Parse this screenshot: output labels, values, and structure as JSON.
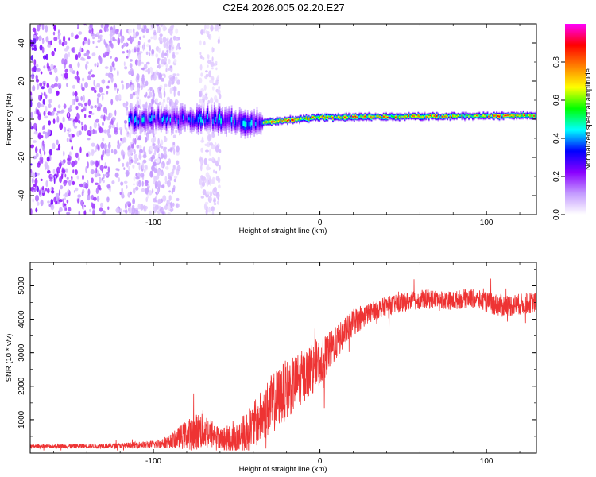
{
  "figure": {
    "title": "C2E4.2026.005.02.20.E27"
  },
  "chart_data": [
    {
      "type": "heatmap",
      "xlabel": "Height of straight line (km)",
      "ylabel": "Frequency (Hz)",
      "xlim": [
        -174,
        130
      ],
      "ylim": [
        -50,
        50
      ],
      "xticks": [
        -100,
        0,
        100
      ],
      "yticks": [
        -40,
        -20,
        0,
        20,
        40
      ],
      "colorbar": {
        "label": "Normalized spectral amplitude",
        "range": [
          0,
          1
        ],
        "ticks": [
          0.0,
          0.2,
          0.4,
          0.6,
          0.8
        ],
        "colormap": [
          "#ffffff",
          "#c49bff",
          "#8a00ff",
          "#0000ff",
          "#00ffff",
          "#00ff00",
          "#ffff00",
          "#ff8000",
          "#ff0000",
          "#ff00ff"
        ]
      },
      "description_points": [
        {
          "x": -170,
          "f_center": 0,
          "f_halfwidth": 50,
          "amplitude": 0.1
        },
        {
          "x": -100,
          "f_center": 0,
          "f_halfwidth": 6,
          "amplitude": 0.4
        },
        {
          "x": -65,
          "f_center": 0,
          "f_halfwidth": 50,
          "amplitude": 0.05
        },
        {
          "x": -40,
          "f_center": -2,
          "f_halfwidth": 3,
          "amplitude": 0.5
        },
        {
          "x": 0,
          "f_center": 1,
          "f_halfwidth": 2,
          "amplitude": 0.9
        },
        {
          "x": 130,
          "f_center": 2,
          "f_halfwidth": 2,
          "amplitude": 0.9
        }
      ]
    },
    {
      "type": "line",
      "xlabel": "Height of straight line (km)",
      "ylabel": "SNR (10 * v/v)",
      "xlim": [
        -174,
        130
      ],
      "ylim": [
        0,
        5700
      ],
      "xticks": [
        -100,
        0,
        100
      ],
      "yticks": [
        1000,
        2000,
        3000,
        4000,
        5000
      ],
      "color": "#ee3333",
      "series": [
        {
          "name": "SNR",
          "x": [
            -174,
            -150,
            -120,
            -100,
            -90,
            -80,
            -70,
            -60,
            -50,
            -40,
            -30,
            -20,
            -10,
            0,
            10,
            20,
            30,
            40,
            50,
            60,
            70,
            80,
            90,
            100,
            110,
            120,
            130
          ],
          "y": [
            200,
            210,
            220,
            260,
            350,
            550,
            700,
            450,
            420,
            800,
            1400,
            1900,
            2300,
            2700,
            3300,
            3900,
            4200,
            4400,
            4500,
            4600,
            4600,
            4550,
            4650,
            4500,
            4400,
            4450,
            4500
          ],
          "spread": [
            60,
            70,
            80,
            120,
            200,
            450,
            600,
            300,
            500,
            700,
            900,
            900,
            800,
            700,
            500,
            400,
            300,
            280,
            280,
            300,
            280,
            280,
            300,
            300,
            350,
            320,
            300
          ]
        }
      ]
    }
  ]
}
